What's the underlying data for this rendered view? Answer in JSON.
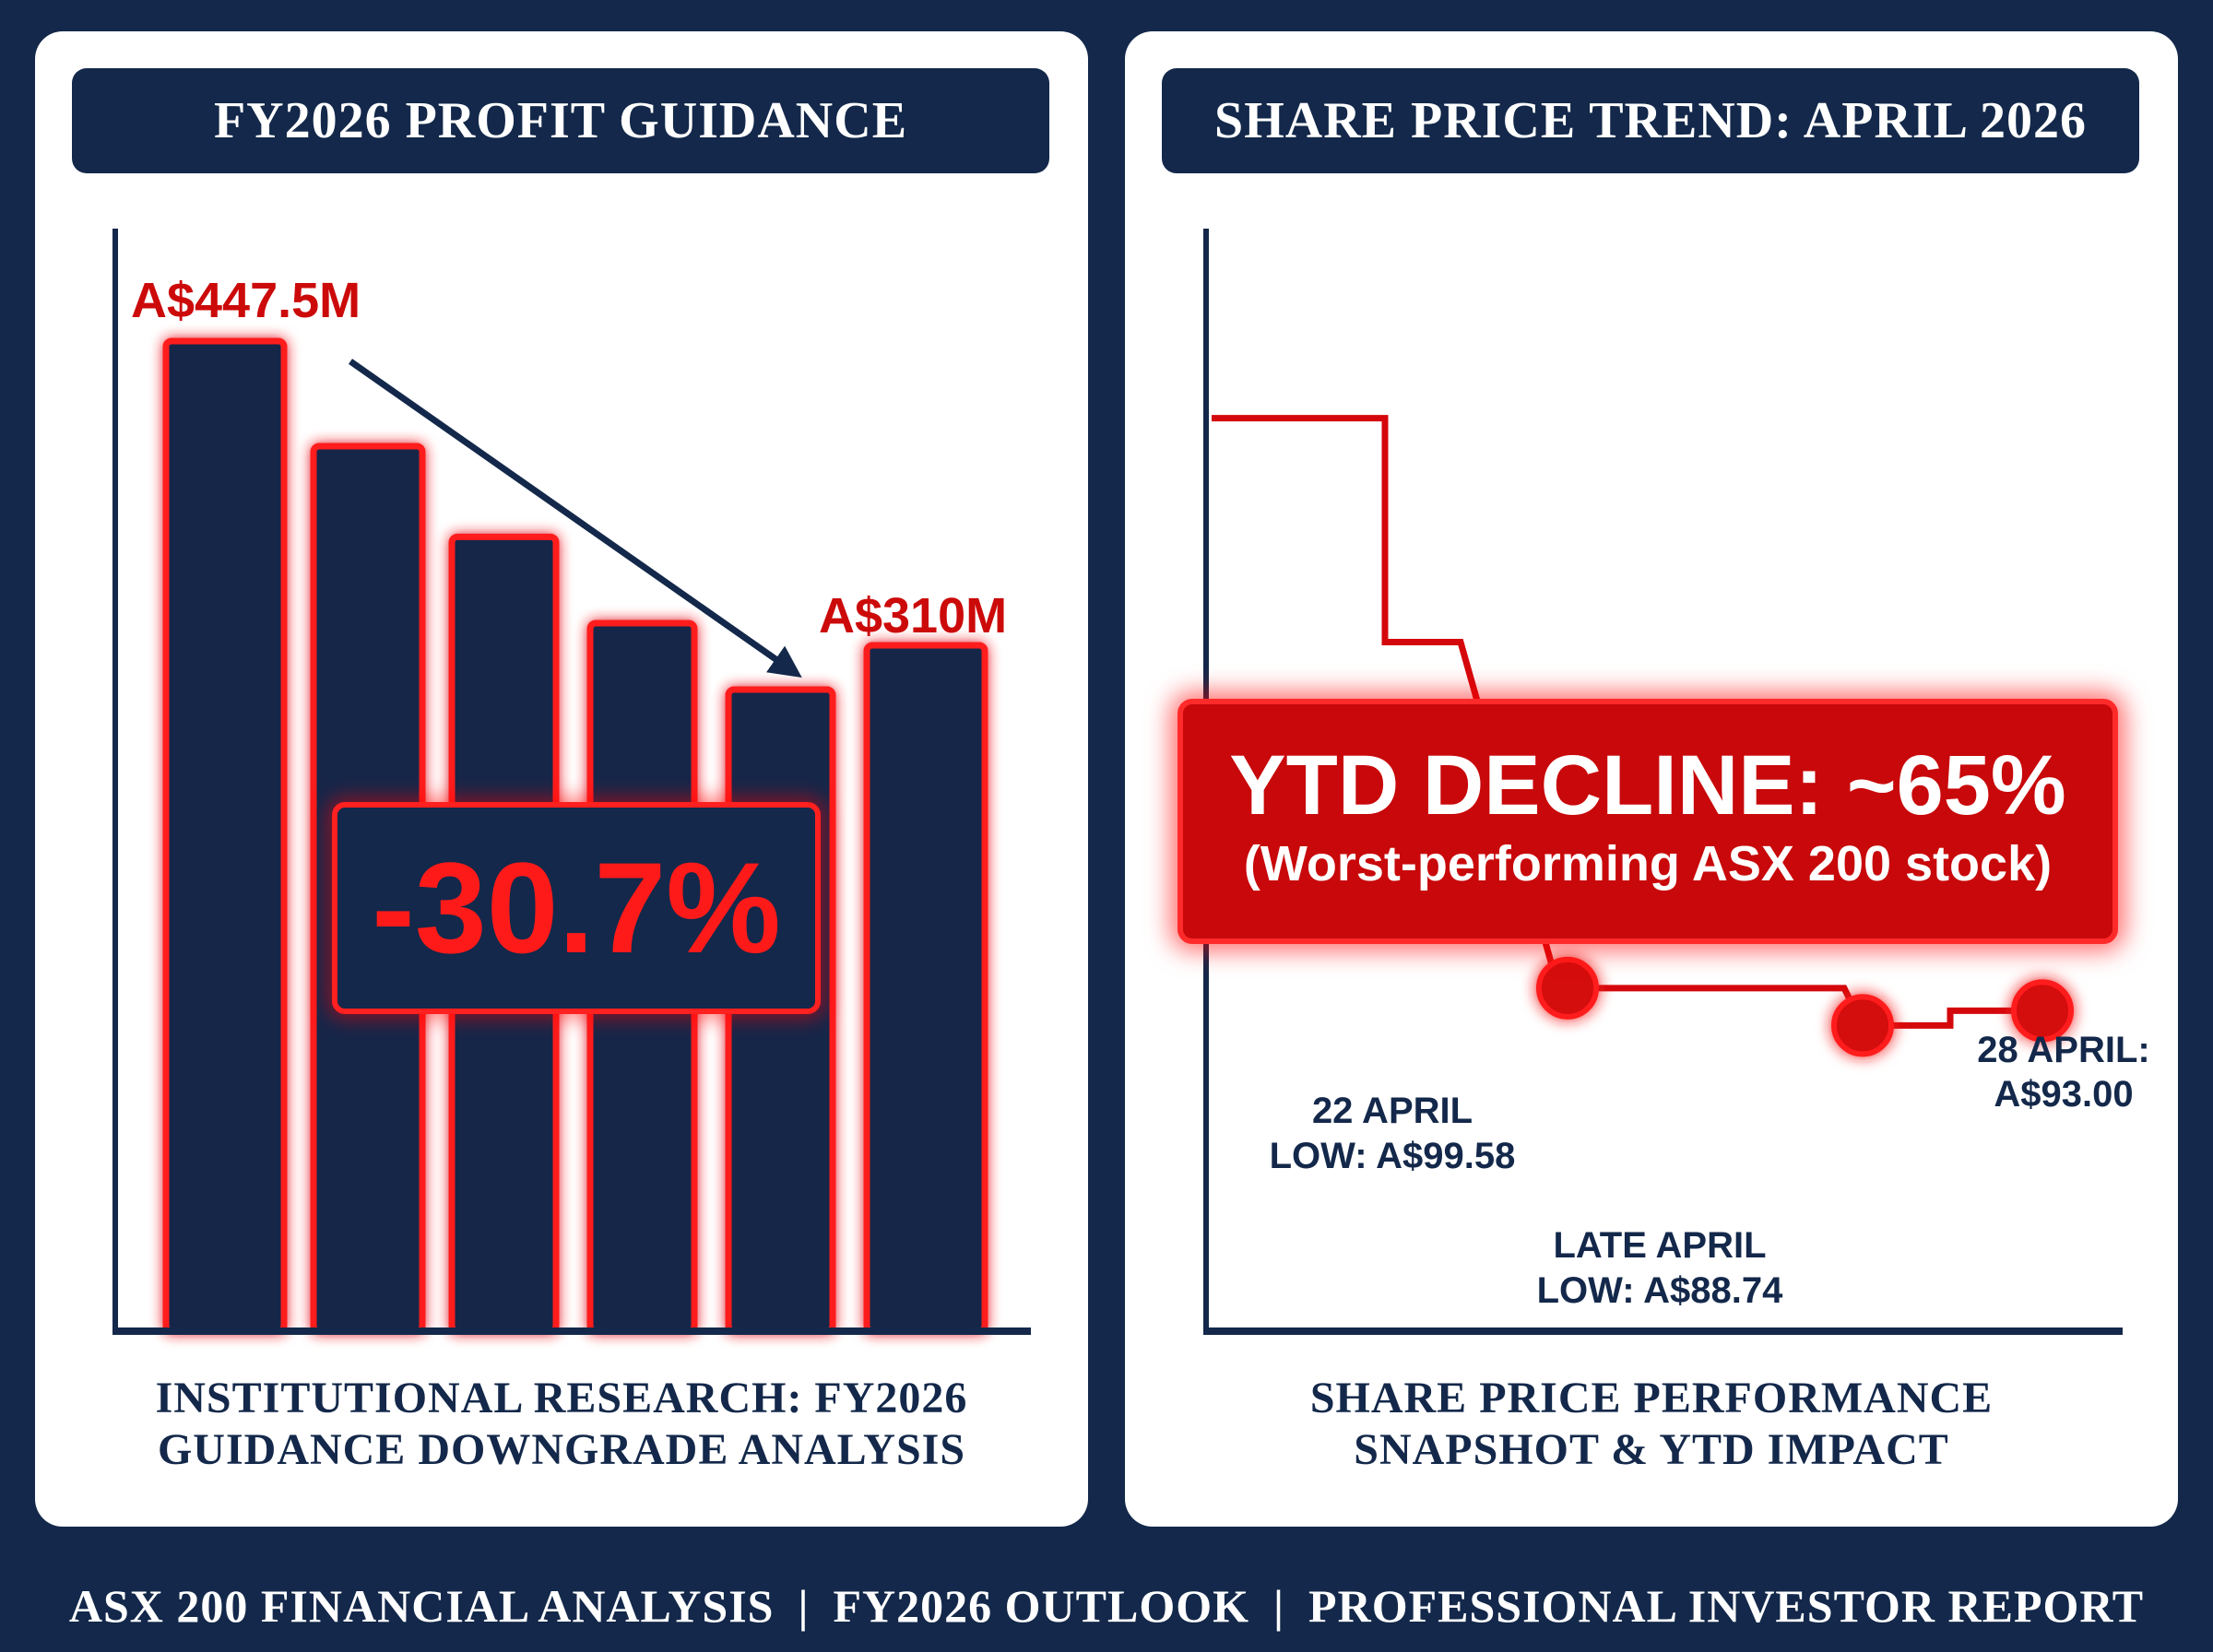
{
  "left_panel": {
    "header": "FY2026 PROFIT GUIDANCE",
    "start_label": "A$447.5M",
    "end_label": "A$310M",
    "change_label": "-30.7%",
    "caption_line1": "INSTITUTIONAL RESEARCH: FY2026",
    "caption_line2": "GUIDANCE DOWNGRADE ANALYSIS"
  },
  "right_panel": {
    "header": "SHARE PRICE TREND: APRIL 2026",
    "ytd_title": "YTD DECLINE: ~65%",
    "ytd_subtitle": "(Worst-performing ASX 200 stock)",
    "label_22_line1": "22 APRIL",
    "label_22_line2": "LOW: A$99.58",
    "label_late_line1": "LATE APRIL",
    "label_late_line2": "LOW: A$88.74",
    "label_28_line1": "28 APRIL:",
    "label_28_line2": "A$93.00",
    "caption_line1": "SHARE PRICE PERFORMANCE",
    "caption_line2": "SNAPSHOT & YTD IMPACT"
  },
  "footer": {
    "item1": "ASX 200 FINANCIAL ANALYSIS",
    "separator": "|",
    "item2": "FY2026 OUTLOOK",
    "item3": "PROFESSIONAL INVESTOR REPORT"
  },
  "colors": {
    "navy": "#13284a",
    "red": "#d4080c",
    "glow": "#ff1a1a",
    "white": "#ffffff"
  },
  "chart_data": [
    {
      "type": "bar",
      "title": "FY2026 PROFIT GUIDANCE",
      "categories": [
        "",
        "",
        "",
        "",
        "",
        ""
      ],
      "values": [
        447.5,
        400,
        359,
        320,
        290,
        310
      ],
      "ylim": [
        0,
        500
      ],
      "data_labels": [
        "A$447.5M",
        "",
        "",
        "",
        "",
        "A$310M"
      ],
      "annotation": "-30.7%",
      "grid": false
    },
    {
      "type": "line",
      "title": "SHARE PRICE TREND: APRIL 2026",
      "x": [
        0,
        1,
        2,
        3,
        4,
        5,
        6,
        7,
        8
      ],
      "values": [
        265,
        265,
        200,
        200,
        99.58,
        99.58,
        88.74,
        93.0,
        93.0
      ],
      "ylim": [
        0,
        320
      ],
      "marked_points": [
        {
          "label": "22 APRIL LOW: A$99.58",
          "value": 99.58
        },
        {
          "label": "LATE APRIL LOW: A$88.74",
          "value": 88.74
        },
        {
          "label": "28 APRIL: A$93.00",
          "value": 93.0
        }
      ],
      "annotation": "YTD DECLINE: ~65%",
      "grid": false
    }
  ]
}
